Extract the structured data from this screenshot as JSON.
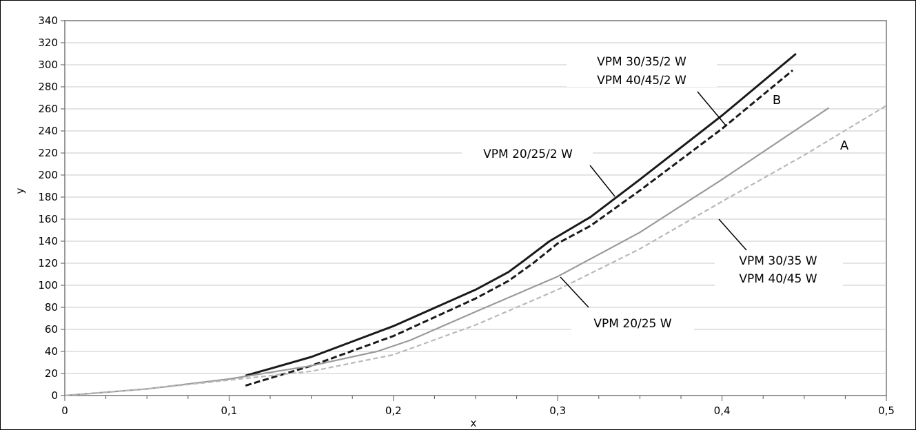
{
  "chart_data": {
    "type": "line",
    "xlabel": "x",
    "ylabel": "y",
    "xlim": [
      0,
      0.5
    ],
    "ylim": [
      0,
      340
    ],
    "x_ticks": [
      0,
      0.1,
      0.2,
      0.3,
      0.4,
      0.5
    ],
    "x_tick_labels": [
      "0",
      "0,1",
      "0,2",
      "0,3",
      "0,4",
      "0,5"
    ],
    "x_minor_step": 0.025,
    "y_ticks": [
      0,
      20,
      40,
      60,
      80,
      100,
      120,
      140,
      160,
      180,
      200,
      220,
      240,
      260,
      280,
      300,
      320,
      340
    ],
    "grid": "horizontal",
    "colors": {
      "black": "#1a1a1a",
      "gray": "#9a9a9a",
      "lightgray": "#b8b8b8",
      "grid": "#c8c8c8",
      "frame": "#999999"
    },
    "series": [
      {
        "color": "black",
        "dash": "solid",
        "points": [
          [
            0.11,
            18
          ],
          [
            0.15,
            35
          ],
          [
            0.2,
            63
          ],
          [
            0.25,
            96
          ],
          [
            0.27,
            112
          ],
          [
            0.28,
            123
          ],
          [
            0.295,
            140
          ],
          [
            0.32,
            162
          ],
          [
            0.35,
            196
          ],
          [
            0.4,
            254
          ],
          [
            0.445,
            310
          ]
        ]
      },
      {
        "color": "black",
        "dash": "dashed",
        "points": [
          [
            0.11,
            9
          ],
          [
            0.15,
            27
          ],
          [
            0.2,
            54
          ],
          [
            0.25,
            88
          ],
          [
            0.27,
            104
          ],
          [
            0.285,
            120
          ],
          [
            0.3,
            138
          ],
          [
            0.32,
            154
          ],
          [
            0.35,
            186
          ],
          [
            0.4,
            242
          ],
          [
            0.443,
            295
          ]
        ]
      },
      {
        "color": "gray",
        "dash": "solid",
        "points": [
          [
            0,
            0
          ],
          [
            0.05,
            6
          ],
          [
            0.1,
            15
          ],
          [
            0.15,
            27
          ],
          [
            0.19,
            40
          ],
          [
            0.21,
            50
          ],
          [
            0.25,
            76
          ],
          [
            0.3,
            108
          ],
          [
            0.35,
            148
          ],
          [
            0.4,
            196
          ],
          [
            0.465,
            261
          ]
        ]
      },
      {
        "color": "lightgray",
        "dash": "dashed",
        "points": [
          [
            0,
            0
          ],
          [
            0.05,
            6
          ],
          [
            0.1,
            14
          ],
          [
            0.15,
            22
          ],
          [
            0.2,
            37
          ],
          [
            0.25,
            64
          ],
          [
            0.3,
            96
          ],
          [
            0.35,
            133
          ],
          [
            0.4,
            176
          ],
          [
            0.45,
            218
          ],
          [
            0.5,
            263
          ]
        ]
      }
    ],
    "annotations": {
      "vpm_30_35_2w": "VPM 30/35/2 W",
      "vpm_40_45_2w": "VPM 40/45/2 W",
      "vpm_20_25_2w": "VPM 20/25/2 W",
      "vpm_30_35w": "VPM 30/35 W",
      "vpm_40_45w": "VPM 40/45 W",
      "vpm_20_25w": "VPM 20/25 W",
      "label_a": "A",
      "label_b": "B"
    }
  }
}
